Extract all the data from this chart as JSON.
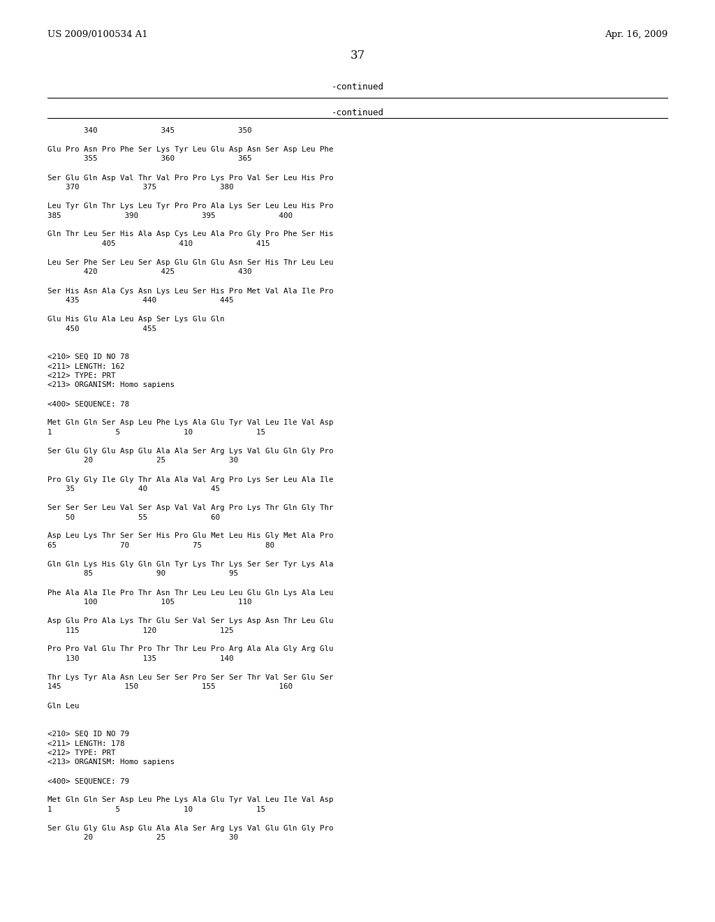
{
  "background_color": "#ffffff",
  "text_color": "#000000",
  "header_left": "US 2009/0100534 A1",
  "header_right": "Apr. 16, 2009",
  "page_number": "37",
  "content": [
    {
      "type": "continued",
      "text": "-continued"
    },
    {
      "type": "hline"
    },
    {
      "type": "mono",
      "text": "        340              345              350"
    },
    {
      "type": "blank"
    },
    {
      "type": "mono",
      "text": "Glu Pro Asn Pro Phe Ser Lys Tyr Leu Glu Asp Asn Ser Asp Leu Phe"
    },
    {
      "type": "mono",
      "text": "        355              360              365"
    },
    {
      "type": "blank"
    },
    {
      "type": "mono",
      "text": "Ser Glu Gln Asp Val Thr Val Pro Pro Lys Pro Val Ser Leu His Pro"
    },
    {
      "type": "mono",
      "text": "    370              375              380"
    },
    {
      "type": "blank"
    },
    {
      "type": "mono",
      "text": "Leu Tyr Gln Thr Lys Leu Tyr Pro Pro Ala Lys Ser Leu Leu His Pro"
    },
    {
      "type": "mono",
      "text": "385              390              395              400"
    },
    {
      "type": "blank"
    },
    {
      "type": "mono",
      "text": "Gln Thr Leu Ser His Ala Asp Cys Leu Ala Pro Gly Pro Phe Ser His"
    },
    {
      "type": "mono",
      "text": "            405              410              415"
    },
    {
      "type": "blank"
    },
    {
      "type": "mono",
      "text": "Leu Ser Phe Ser Leu Ser Asp Glu Gln Glu Asn Ser His Thr Leu Leu"
    },
    {
      "type": "mono",
      "text": "        420              425              430"
    },
    {
      "type": "blank"
    },
    {
      "type": "mono",
      "text": "Ser His Asn Ala Cys Asn Lys Leu Ser His Pro Met Val Ala Ile Pro"
    },
    {
      "type": "mono",
      "text": "    435              440              445"
    },
    {
      "type": "blank"
    },
    {
      "type": "mono",
      "text": "Glu His Glu Ala Leu Asp Ser Lys Glu Gln"
    },
    {
      "type": "mono",
      "text": "    450              455"
    },
    {
      "type": "blank"
    },
    {
      "type": "blank"
    },
    {
      "type": "mono",
      "text": "<210> SEQ ID NO 78"
    },
    {
      "type": "mono",
      "text": "<211> LENGTH: 162"
    },
    {
      "type": "mono",
      "text": "<212> TYPE: PRT"
    },
    {
      "type": "mono",
      "text": "<213> ORGANISM: Homo sapiens"
    },
    {
      "type": "blank"
    },
    {
      "type": "mono",
      "text": "<400> SEQUENCE: 78"
    },
    {
      "type": "blank"
    },
    {
      "type": "mono",
      "text": "Met Gln Gln Ser Asp Leu Phe Lys Ala Glu Tyr Val Leu Ile Val Asp"
    },
    {
      "type": "mono",
      "text": "1              5              10              15"
    },
    {
      "type": "blank"
    },
    {
      "type": "mono",
      "text": "Ser Glu Gly Glu Asp Glu Ala Ala Ser Arg Lys Val Glu Gln Gly Pro"
    },
    {
      "type": "mono",
      "text": "        20              25              30"
    },
    {
      "type": "blank"
    },
    {
      "type": "mono",
      "text": "Pro Gly Gly Ile Gly Thr Ala Ala Val Arg Pro Lys Ser Leu Ala Ile"
    },
    {
      "type": "mono",
      "text": "    35              40              45"
    },
    {
      "type": "blank"
    },
    {
      "type": "mono",
      "text": "Ser Ser Ser Leu Val Ser Asp Val Val Arg Pro Lys Thr Gln Gly Thr"
    },
    {
      "type": "mono",
      "text": "    50              55              60"
    },
    {
      "type": "blank"
    },
    {
      "type": "mono",
      "text": "Asp Leu Lys Thr Ser Ser His Pro Glu Met Leu His Gly Met Ala Pro"
    },
    {
      "type": "mono",
      "text": "65              70              75              80"
    },
    {
      "type": "blank"
    },
    {
      "type": "mono",
      "text": "Gln Gln Lys His Gly Gln Gln Tyr Lys Thr Lys Ser Ser Tyr Lys Ala"
    },
    {
      "type": "mono",
      "text": "        85              90              95"
    },
    {
      "type": "blank"
    },
    {
      "type": "mono",
      "text": "Phe Ala Ala Ile Pro Thr Asn Thr Leu Leu Leu Glu Gln Lys Ala Leu"
    },
    {
      "type": "mono",
      "text": "        100              105              110"
    },
    {
      "type": "blank"
    },
    {
      "type": "mono",
      "text": "Asp Glu Pro Ala Lys Thr Glu Ser Val Ser Lys Asp Asn Thr Leu Glu"
    },
    {
      "type": "mono",
      "text": "    115              120              125"
    },
    {
      "type": "blank"
    },
    {
      "type": "mono",
      "text": "Pro Pro Val Glu Thr Pro Thr Thr Leu Pro Arg Ala Ala Gly Arg Glu"
    },
    {
      "type": "mono",
      "text": "    130              135              140"
    },
    {
      "type": "blank"
    },
    {
      "type": "mono",
      "text": "Thr Lys Tyr Ala Asn Leu Ser Ser Pro Ser Ser Thr Val Ser Glu Ser"
    },
    {
      "type": "mono",
      "text": "145              150              155              160"
    },
    {
      "type": "blank"
    },
    {
      "type": "mono",
      "text": "Gln Leu"
    },
    {
      "type": "blank"
    },
    {
      "type": "blank"
    },
    {
      "type": "mono",
      "text": "<210> SEQ ID NO 79"
    },
    {
      "type": "mono",
      "text": "<211> LENGTH: 178"
    },
    {
      "type": "mono",
      "text": "<212> TYPE: PRT"
    },
    {
      "type": "mono",
      "text": "<213> ORGANISM: Homo sapiens"
    },
    {
      "type": "blank"
    },
    {
      "type": "mono",
      "text": "<400> SEQUENCE: 79"
    },
    {
      "type": "blank"
    },
    {
      "type": "mono",
      "text": "Met Gln Gln Ser Asp Leu Phe Lys Ala Glu Tyr Val Leu Ile Val Asp"
    },
    {
      "type": "mono",
      "text": "1              5              10              15"
    },
    {
      "type": "blank"
    },
    {
      "type": "mono",
      "text": "Ser Glu Gly Glu Asp Glu Ala Ala Ser Arg Lys Val Glu Gln Gly Pro"
    },
    {
      "type": "mono",
      "text": "        20              25              30"
    }
  ]
}
